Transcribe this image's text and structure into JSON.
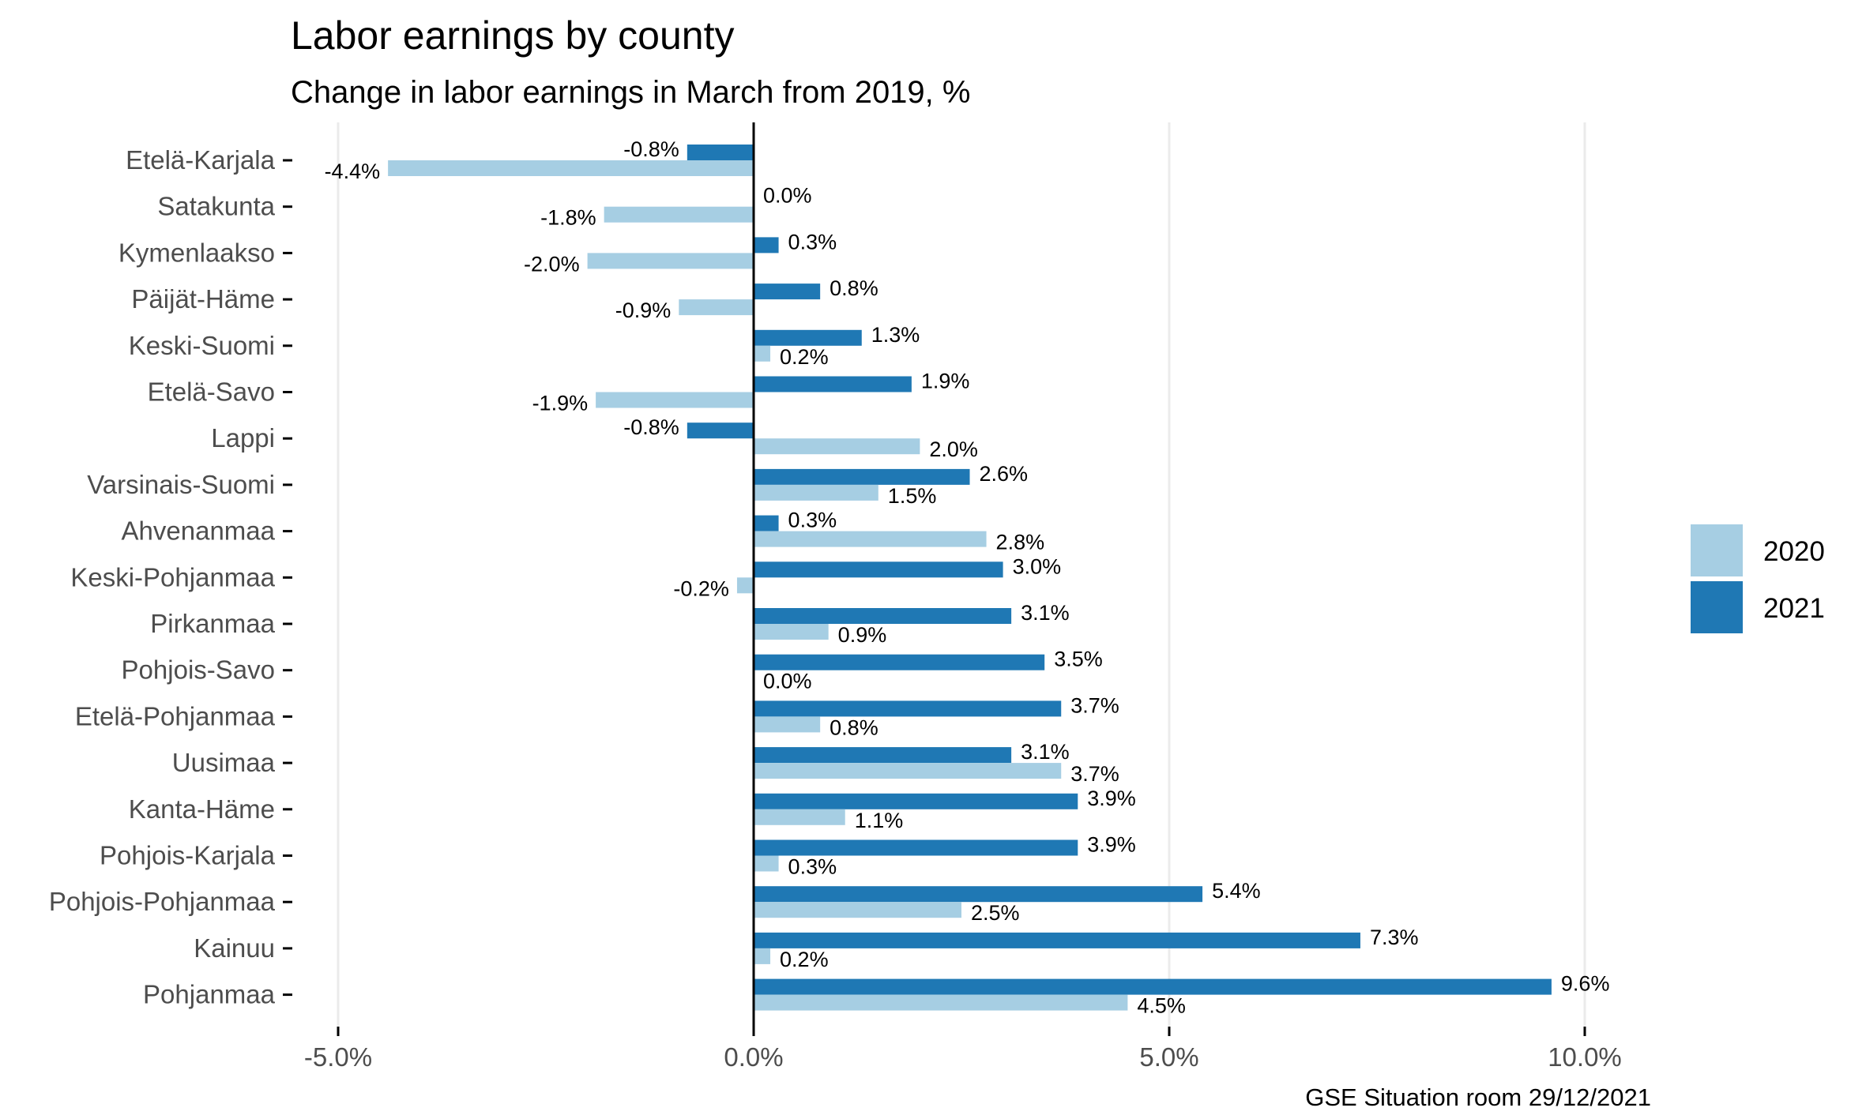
{
  "chart_data": {
    "type": "bar",
    "orientation": "horizontal",
    "title": "Labor earnings by county",
    "subtitle": "Change in labor earnings in March from 2019, %",
    "caption": "GSE Situation room 29/12/2021",
    "xlabel": "",
    "ylabel": "",
    "xlim": [
      -5.5,
      12.5
    ],
    "x_ticks": [
      -5,
      0,
      5,
      10
    ],
    "x_tick_labels": [
      "-5.0%",
      "0.0%",
      "5.0%",
      "10.0%"
    ],
    "grid": "vertical major",
    "legend_position": "right",
    "categories": [
      "Etelä-Karjala",
      "Satakunta",
      "Kymenlaakso",
      "Päijät-Häme",
      "Keski-Suomi",
      "Etelä-Savo",
      "Lappi",
      "Varsinais-Suomi",
      "Ahvenanmaa",
      "Keski-Pohjanmaa",
      "Pirkanmaa",
      "Pohjois-Savo",
      "Etelä-Pohjanmaa",
      "Uusimaa",
      "Kanta-Häme",
      "Pohjois-Karjala",
      "Pohjois-Pohjanmaa",
      "Kainuu",
      "Pohjanmaa"
    ],
    "series": [
      {
        "name": "2020",
        "color": "#a6cee3",
        "values": [
          -4.4,
          -1.8,
          -2.0,
          -0.9,
          0.2,
          -1.9,
          2.0,
          1.5,
          2.8,
          -0.2,
          0.9,
          0.0,
          0.8,
          3.7,
          1.1,
          0.3,
          2.5,
          0.2,
          4.5
        ],
        "labels": [
          "-4.4%",
          "-1.8%",
          "-2.0%",
          "-0.9%",
          "0.2%",
          "-1.9%",
          "2.0%",
          "1.5%",
          "2.8%",
          "-0.2%",
          "0.9%",
          "0.0%",
          "0.8%",
          "3.7%",
          "1.1%",
          "0.3%",
          "2.5%",
          "0.2%",
          "4.5%"
        ]
      },
      {
        "name": "2021",
        "color": "#1f78b4",
        "values": [
          -0.8,
          0.0,
          0.3,
          0.8,
          1.3,
          1.9,
          -0.8,
          2.6,
          0.3,
          3.0,
          3.1,
          3.5,
          3.7,
          3.1,
          3.9,
          3.9,
          5.4,
          7.3,
          9.6
        ],
        "labels": [
          "-0.8%",
          "0.0%",
          "0.3%",
          "0.8%",
          "1.3%",
          "1.9%",
          "-0.8%",
          "2.6%",
          "0.3%",
          "3.0%",
          "3.1%",
          "3.5%",
          "3.7%",
          "3.1%",
          "3.9%",
          "3.9%",
          "5.4%",
          "7.3%",
          "9.6%"
        ]
      }
    ]
  }
}
